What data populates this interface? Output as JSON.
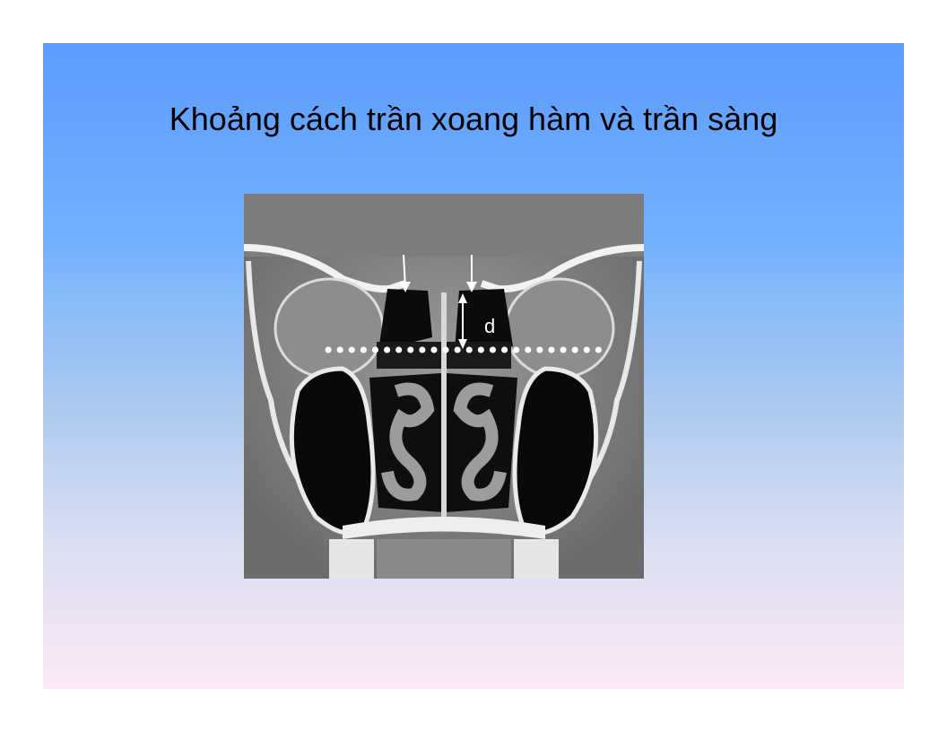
{
  "slide": {
    "title": "Khoảng cách trần xoang hàm và trần sàng",
    "image": {
      "annotation_label": "d"
    }
  },
  "colors": {
    "background_top": "#5b9bfd",
    "background_bottom": "#fbe8f6",
    "title_text": "#000000"
  }
}
